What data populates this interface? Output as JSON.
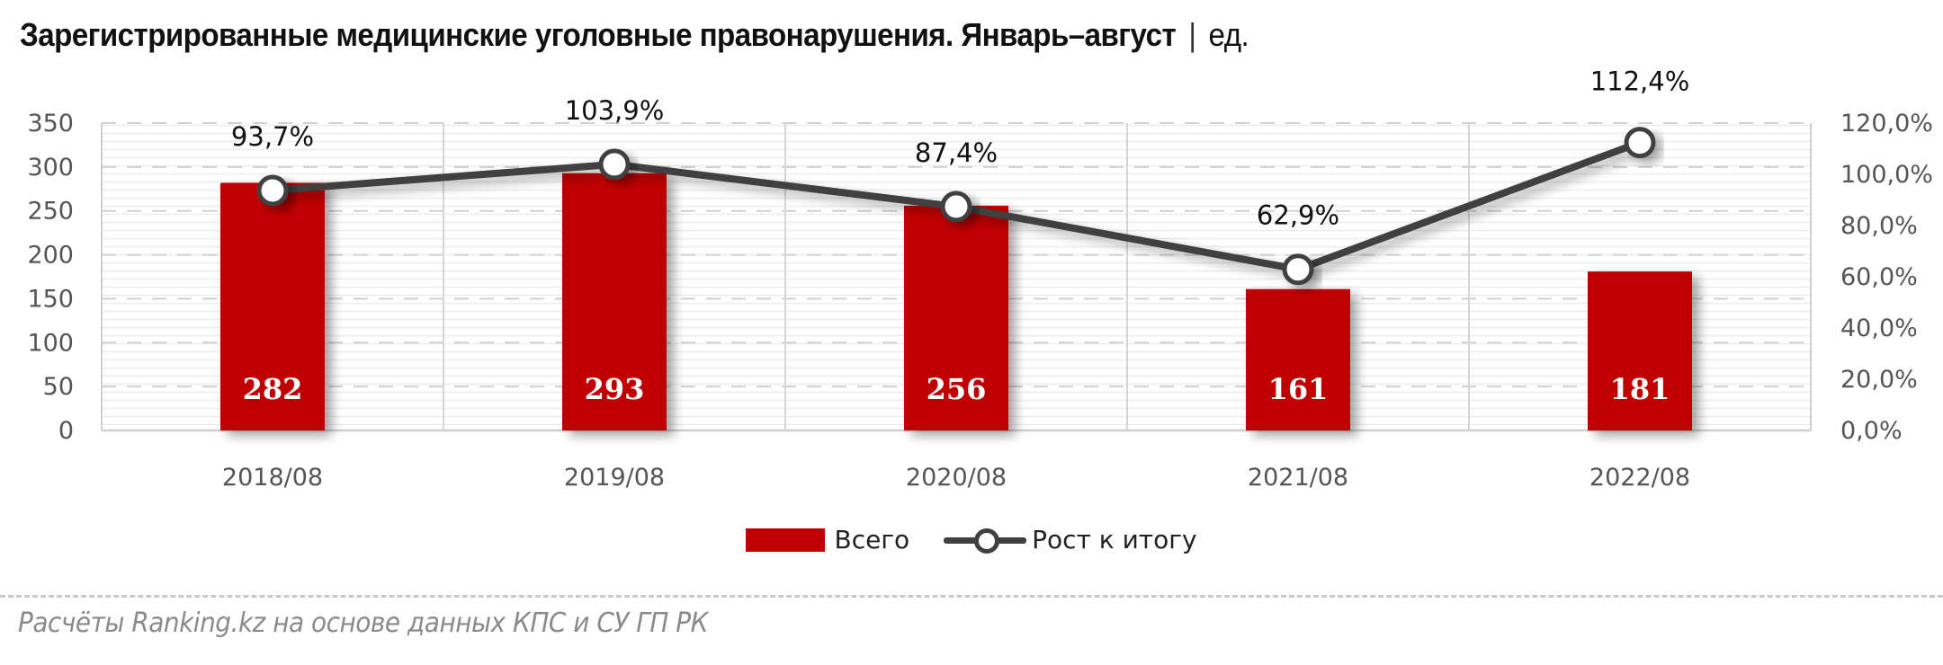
{
  "header": {
    "title": "Зарегистрированные медицинские уголовные правонарушения. Январь–август",
    "separator": "|",
    "unit": "ед."
  },
  "legend": {
    "bar_label": "Всего",
    "line_label": "Рост к итогу"
  },
  "footer": {
    "source": "Расчёты Ranking.kz на основе данных КПС и СУ ГП РК"
  },
  "colors": {
    "bar": "#c00000",
    "line": "#404040",
    "marker_fill": "#ffffff",
    "grid": "#d0d0d0"
  },
  "chart_data": {
    "type": "bar+line",
    "title": "Зарегистрированные медицинские уголовные правонарушения. Январь–август | ед.",
    "categories": [
      "2018/08",
      "2019/08",
      "2020/08",
      "2021/08",
      "2022/08"
    ],
    "series": [
      {
        "name": "Всего",
        "type": "bar",
        "axis": "left",
        "values": [
          282,
          293,
          256,
          161,
          181
        ],
        "labels": [
          "282",
          "293",
          "256",
          "161",
          "181"
        ]
      },
      {
        "name": "Рост к итогу",
        "type": "line",
        "axis": "right",
        "values": [
          93.7,
          103.9,
          87.4,
          62.9,
          112.4
        ],
        "labels": [
          "93,7%",
          "103,9%",
          "87,4%",
          "62,9%",
          "112,4%"
        ]
      }
    ],
    "y_left": {
      "ylim": [
        0,
        350
      ],
      "ticks": [
        "0",
        "50",
        "100",
        "150",
        "200",
        "250",
        "300",
        "350"
      ]
    },
    "y_right": {
      "ylim": [
        0,
        120
      ],
      "ticks": [
        "0,0%",
        "20,0%",
        "40,0%",
        "60,0%",
        "80,0%",
        "100,0%",
        "120,0%"
      ]
    },
    "xlabel": "",
    "ylabel": "",
    "grid": true,
    "legend_position": "bottom"
  }
}
